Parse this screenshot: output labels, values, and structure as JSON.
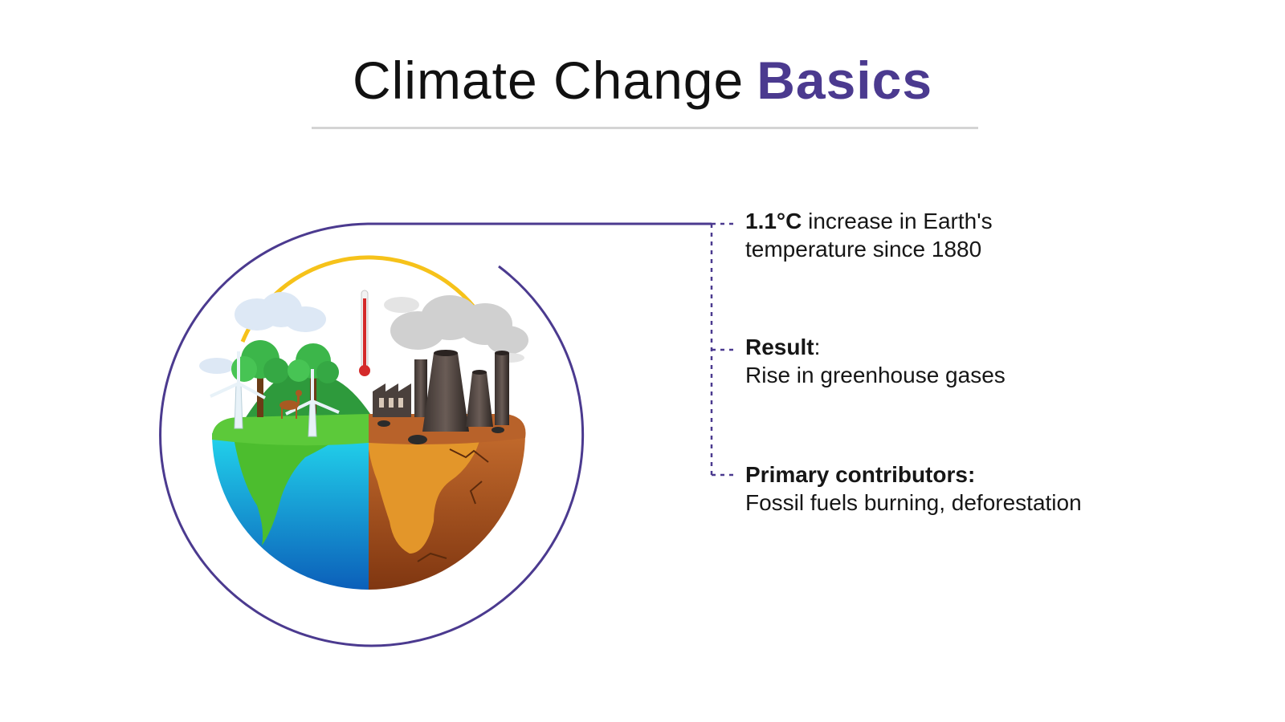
{
  "title": {
    "main": "Climate Change",
    "accent": "Basics"
  },
  "colors": {
    "accent": "#4b3a8f",
    "ocean": "#1e90d6",
    "land_green": "#5cc93a",
    "land_barren": "#b85a22",
    "sun_arc": "#f6c21a",
    "thermometer": "#d42a2a"
  },
  "facts": [
    {
      "bold": "1.1°C",
      "text": " increase in Earth's",
      "line2": "temperature since 1880"
    },
    {
      "bold": "Result",
      "text": ":",
      "line2": "Rise in greenhouse gases"
    },
    {
      "bold": "Primary contributors:",
      "text": "",
      "line2": "Fossil fuels burning, deforestation"
    }
  ],
  "illustration": {
    "icons": [
      "earth-half-green-icon",
      "earth-half-barren-icon",
      "wind-turbine-icon",
      "tree-icon",
      "deer-icon",
      "thermometer-icon",
      "factory-icon",
      "smokestack-icon",
      "smoke-cloud-icon",
      "sun-arc-icon"
    ]
  }
}
